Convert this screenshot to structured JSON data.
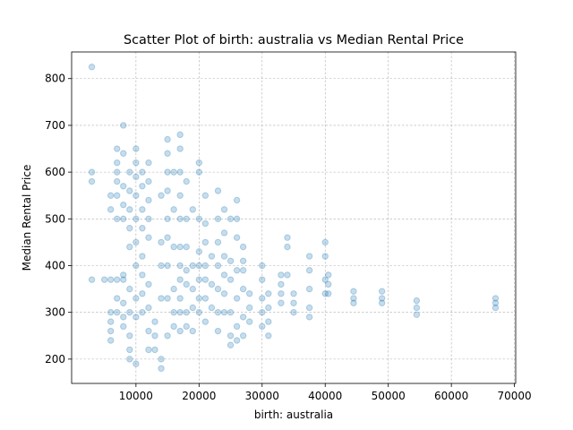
{
  "chart_data": {
    "type": "scatter",
    "title": "Scatter Plot of birth: australia vs Median Rental Price",
    "x_label": "birth: australia",
    "y_label": "Median Rental Price",
    "color": "#1f77b4",
    "grid": true,
    "xlim": [
      -200,
      70200
    ],
    "ylim": [
      148,
      857
    ],
    "xticks": [
      10000,
      20000,
      30000,
      40000,
      50000,
      60000,
      70000
    ],
    "yticks": [
      200,
      300,
      400,
      500,
      600,
      700,
      800
    ],
    "x": [
      3000,
      3000,
      3000,
      3000,
      5000,
      6000,
      6000,
      6000,
      6000,
      6000,
      6000,
      6000,
      7000,
      7000,
      7000,
      7000,
      7000,
      7000,
      7000,
      7000,
      7000,
      8000,
      8000,
      8000,
      8000,
      8000,
      8000,
      8000,
      8000,
      8000,
      8000,
      9000,
      9000,
      9000,
      9000,
      9000,
      9000,
      9000,
      9000,
      9000,
      9000,
      10000,
      10000,
      10000,
      10000,
      10000,
      10000,
      10000,
      10000,
      10000,
      10000,
      11000,
      11000,
      11000,
      11000,
      11000,
      11000,
      11000,
      11000,
      12000,
      12000,
      12000,
      12000,
      12000,
      12000,
      12000,
      12000,
      12000,
      13000,
      13000,
      13000,
      14000,
      14000,
      14000,
      14000,
      14000,
      14000,
      15000,
      15000,
      15000,
      15000,
      15000,
      15000,
      15000,
      15000,
      15000,
      16000,
      16000,
      16000,
      16000,
      16000,
      16000,
      17000,
      17000,
      17000,
      17000,
      17000,
      17000,
      17000,
      17000,
      17000,
      17000,
      17000,
      18000,
      18000,
      18000,
      18000,
      18000,
      18000,
      18000,
      19000,
      19000,
      19000,
      19000,
      19000,
      20000,
      20000,
      20000,
      20000,
      20000,
      20000,
      20000,
      20000,
      21000,
      21000,
      21000,
      21000,
      21000,
      21000,
      21000,
      22000,
      22000,
      22000,
      23000,
      23000,
      23000,
      23000,
      23000,
      23000,
      23000,
      24000,
      24000,
      24000,
      24000,
      24000,
      24000,
      25000,
      25000,
      25000,
      25000,
      25000,
      25000,
      26000,
      26000,
      26000,
      26000,
      26000,
      26000,
      26000,
      27000,
      27000,
      27000,
      27000,
      27000,
      27000,
      28000,
      28000,
      28000,
      30000,
      30000,
      30000,
      30000,
      30000,
      31000,
      31000,
      31000,
      31000,
      33000,
      33000,
      33000,
      33000,
      34000,
      34000,
      34000,
      35000,
      35000,
      35000,
      37500,
      37500,
      37500,
      37500,
      37500,
      40000,
      40000,
      40000,
      40000,
      40500,
      40500,
      40500,
      44500,
      44500,
      44500,
      49000,
      49000,
      49000,
      54500,
      54500,
      54500,
      67000,
      67000,
      67000
    ],
    "y": [
      825,
      600,
      580,
      370,
      370,
      550,
      520,
      370,
      300,
      280,
      260,
      240,
      650,
      620,
      600,
      580,
      550,
      500,
      370,
      330,
      300,
      700,
      640,
      570,
      530,
      500,
      380,
      370,
      320,
      290,
      270,
      600,
      560,
      520,
      480,
      440,
      350,
      300,
      250,
      220,
      200,
      650,
      620,
      590,
      550,
      500,
      450,
      400,
      330,
      290,
      190,
      600,
      570,
      520,
      480,
      420,
      380,
      340,
      300,
      620,
      580,
      540,
      500,
      460,
      360,
      310,
      260,
      220,
      280,
      250,
      220,
      550,
      450,
      400,
      330,
      200,
      180,
      670,
      640,
      600,
      560,
      500,
      460,
      400,
      330,
      250,
      600,
      520,
      440,
      350,
      300,
      270,
      680,
      650,
      600,
      550,
      500,
      440,
      400,
      370,
      330,
      300,
      260,
      580,
      500,
      440,
      390,
      360,
      300,
      270,
      520,
      400,
      350,
      310,
      260,
      620,
      600,
      500,
      430,
      400,
      370,
      330,
      300,
      550,
      490,
      450,
      400,
      370,
      330,
      280,
      420,
      360,
      310,
      560,
      500,
      450,
      400,
      350,
      300,
      260,
      520,
      470,
      420,
      380,
      340,
      300,
      500,
      410,
      370,
      300,
      250,
      230,
      540,
      500,
      460,
      390,
      330,
      270,
      240,
      440,
      410,
      390,
      350,
      290,
      250,
      340,
      310,
      280,
      400,
      370,
      330,
      300,
      270,
      340,
      310,
      280,
      250,
      380,
      360,
      340,
      320,
      460,
      440,
      380,
      340,
      320,
      300,
      420,
      390,
      350,
      310,
      290,
      450,
      420,
      370,
      340,
      380,
      360,
      340,
      345,
      330,
      320,
      345,
      330,
      320,
      325,
      310,
      295,
      330,
      320,
      310
    ]
  }
}
